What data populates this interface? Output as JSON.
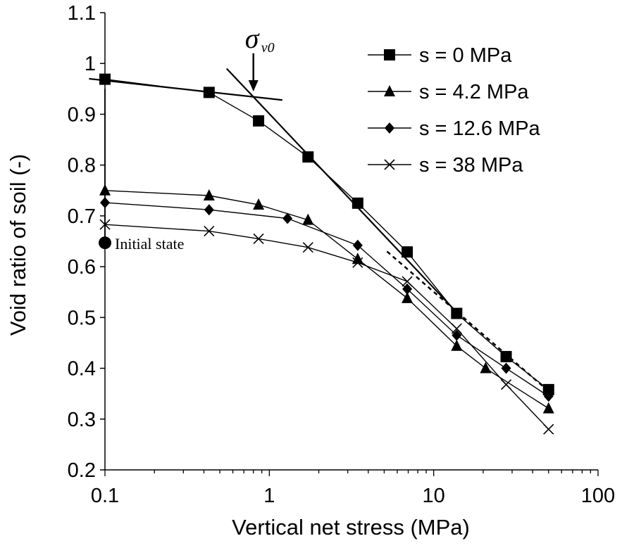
{
  "chart_data": {
    "type": "line",
    "title": "",
    "xlabel": "Vertical net stress (MPa)",
    "ylabel": "Void ratio of soil (-)",
    "xscale": "log",
    "xlim": [
      0.1,
      100
    ],
    "ylim": [
      0.2,
      1.1
    ],
    "xticks": [
      "0.1",
      "1",
      "10",
      "100"
    ],
    "yticks": [
      "0.2",
      "0.3",
      "0.4",
      "0.5",
      "0.6",
      "0.7",
      "0.8",
      "0.9",
      "1",
      "1.1"
    ],
    "legend_position": "top-right",
    "series": [
      {
        "name": "s = 0 MPa",
        "marker": "square",
        "x": [
          0.1,
          0.43,
          0.86,
          1.72,
          3.45,
          6.9,
          13.8,
          27.6,
          50
        ],
        "y": [
          0.969,
          0.943,
          0.887,
          0.816,
          0.725,
          0.629,
          0.508,
          0.423,
          0.358
        ]
      },
      {
        "name": "s = 4.2 MPa",
        "marker": "triangle",
        "x": [
          0.1,
          0.43,
          0.86,
          1.72,
          3.45,
          6.9,
          13.8,
          20.7,
          50
        ],
        "y": [
          0.75,
          0.74,
          0.722,
          0.692,
          0.615,
          0.538,
          0.444,
          0.4,
          0.321
        ]
      },
      {
        "name": "s = 12.6 MPa",
        "marker": "diamond",
        "x": [
          0.1,
          0.43,
          1.29,
          3.45,
          6.9,
          13.8,
          27.6,
          50
        ],
        "y": [
          0.726,
          0.712,
          0.695,
          0.642,
          0.556,
          0.465,
          0.4,
          0.345
        ]
      },
      {
        "name": "s = 38 MPa",
        "marker": "cross",
        "x": [
          0.1,
          0.43,
          0.86,
          1.72,
          3.45,
          6.9,
          13.8,
          27.6,
          50
        ],
        "y": [
          0.683,
          0.67,
          0.655,
          0.638,
          0.608,
          0.571,
          0.478,
          0.368,
          0.28
        ]
      }
    ],
    "wetting_path": {
      "x": [
        0.1,
        0.1
      ],
      "y": [
        0.65,
        0.95
      ]
    },
    "initial_state": {
      "x": 0.1,
      "y": 0.647,
      "label": "Initial state"
    },
    "tangent_lines": [
      {
        "x": [
          0.08,
          1.2
        ],
        "y": [
          0.97,
          0.928
        ]
      },
      {
        "x": [
          0.55,
          14.0
        ],
        "y": [
          0.99,
          0.508
        ]
      }
    ],
    "dashed_line": {
      "x": [
        5.2,
        50
      ],
      "y": [
        0.63,
        0.355
      ]
    },
    "preconsolidation_arrow": {
      "x": 0.8,
      "y_from": 1.02,
      "y_to": 0.945,
      "label": "σ",
      "subscript": "v0"
    }
  }
}
